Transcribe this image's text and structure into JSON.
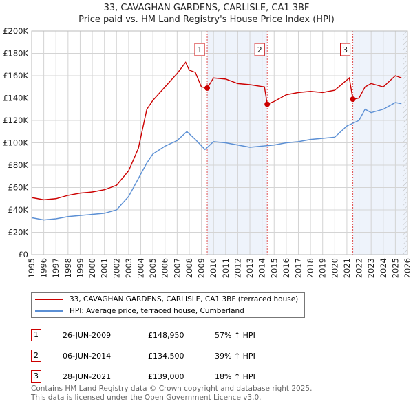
{
  "chart_data": {
    "type": "line",
    "title": "33, CAVAGHAN GARDENS, CARLISLE, CA1 3BF",
    "subtitle": "Price paid vs. HM Land Registry's House Price Index (HPI)",
    "xlim": [
      1995,
      2026
    ],
    "ylim": [
      0,
      200000
    ],
    "x_ticks": [
      "1995",
      "1996",
      "1997",
      "1998",
      "1999",
      "2000",
      "2001",
      "2002",
      "2003",
      "2004",
      "2005",
      "2006",
      "2007",
      "2008",
      "2009",
      "2010",
      "2011",
      "2012",
      "2013",
      "2014",
      "2015",
      "2016",
      "2017",
      "2018",
      "2019",
      "2020",
      "2021",
      "2022",
      "2023",
      "2024",
      "2025",
      "2026"
    ],
    "y_ticks": [
      {
        "v": 0,
        "label": "£0"
      },
      {
        "v": 20000,
        "label": "£20K"
      },
      {
        "v": 40000,
        "label": "£40K"
      },
      {
        "v": 60000,
        "label": "£60K"
      },
      {
        "v": 80000,
        "label": "£80K"
      },
      {
        "v": 100000,
        "label": "£100K"
      },
      {
        "v": 120000,
        "label": "£120K"
      },
      {
        "v": 140000,
        "label": "£140K"
      },
      {
        "v": 160000,
        "label": "£160K"
      },
      {
        "v": 180000,
        "label": "£180K"
      },
      {
        "v": 200000,
        "label": "£200K"
      }
    ],
    "grid": true,
    "series": [
      {
        "name": "33, CAVAGHAN GARDENS, CARLISLE, CA1 3BF (terraced house)",
        "color": "#cc0000",
        "x": [
          1995,
          1996,
          1997,
          1998,
          1999,
          2000,
          2001,
          2002,
          2003,
          2003.8,
          2004.5,
          2005,
          2006,
          2007,
          2007.7,
          2008,
          2008.5,
          2009,
          2009.48,
          2010,
          2011,
          2012,
          2013,
          2014.2,
          2014.43,
          2015,
          2016,
          2017,
          2018,
          2019,
          2020,
          2021.2,
          2021.49,
          2022,
          2022.5,
          2023,
          2024,
          2025,
          2025.5
        ],
        "y": [
          51000,
          49000,
          50000,
          53000,
          55000,
          56000,
          58000,
          62000,
          75000,
          95000,
          130000,
          138000,
          150000,
          162000,
          172000,
          165000,
          163000,
          150000,
          148950,
          158000,
          157000,
          153000,
          152000,
          150000,
          134500,
          137000,
          143000,
          145000,
          146000,
          145000,
          147000,
          158000,
          139000,
          140000,
          150000,
          153000,
          150000,
          160000,
          158000
        ]
      },
      {
        "name": "HPI: Average price, terraced house, Cumberland",
        "color": "#5b8fd4",
        "x": [
          1995,
          1996,
          1997,
          1998,
          1999,
          2000,
          2001,
          2002,
          2003,
          2004,
          2004.5,
          2005,
          2006,
          2007,
          2007.8,
          2008.5,
          2009.3,
          2010,
          2011,
          2012,
          2013,
          2014,
          2015,
          2016,
          2017,
          2018,
          2019,
          2020,
          2021,
          2022,
          2022.5,
          2023,
          2024,
          2025,
          2025.5
        ],
        "y": [
          33000,
          31000,
          32000,
          34000,
          35000,
          36000,
          37000,
          40000,
          52000,
          72000,
          82000,
          90000,
          97000,
          102000,
          110000,
          103000,
          94000,
          101000,
          100000,
          98000,
          96000,
          97000,
          98000,
          100000,
          101000,
          103000,
          104000,
          105000,
          115000,
          120000,
          130000,
          127000,
          130000,
          136000,
          135000
        ]
      }
    ],
    "sales": [
      {
        "id": "1",
        "x": 2009.48,
        "y": 148950,
        "date": "26-JUN-2009",
        "price": "£148,950",
        "hpi": "57% ↑ HPI"
      },
      {
        "id": "2",
        "x": 2014.43,
        "y": 134500,
        "date": "06-JUN-2014",
        "price": "£134,500",
        "hpi": "39% ↑ HPI"
      },
      {
        "id": "3",
        "x": 2021.49,
        "y": 139000,
        "date": "28-JUN-2021",
        "price": "£139,000",
        "hpi": "18% ↑ HPI"
      }
    ],
    "legend_placement": "below"
  },
  "footer": [
    "Contains HM Land Registry data © Crown copyright and database right 2025.",
    "This data is licensed under the Open Government Licence v3.0."
  ]
}
